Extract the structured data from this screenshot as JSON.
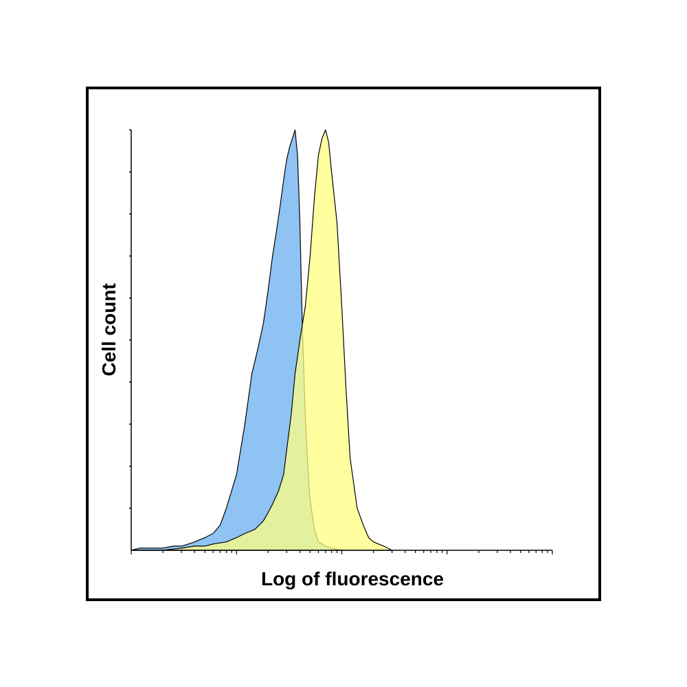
{
  "chart_data": {
    "type": "area",
    "xlabel": "Log of fluorescence",
    "ylabel": "Cell count",
    "x_scale": "log",
    "xlim": [
      1,
      10000
    ],
    "ylim": [
      0,
      100
    ],
    "grid": false,
    "legend": "none",
    "series": [
      {
        "color": "#8fc3f3",
        "x": [
          1,
          1.2,
          1.5,
          2,
          2.5,
          3,
          3.5,
          4,
          5,
          6,
          7,
          8,
          10,
          12,
          14,
          16,
          18,
          20,
          22,
          24,
          26,
          28,
          30,
          32,
          34,
          36,
          38,
          40,
          42,
          45,
          48,
          50,
          55,
          60,
          70,
          80,
          100
        ],
        "values": [
          0,
          0.5,
          0.5,
          0.5,
          1,
          1,
          1.5,
          2,
          3,
          4,
          6,
          10,
          18,
          30,
          42,
          48,
          54,
          62,
          70,
          76,
          82,
          88,
          93,
          96,
          98,
          100,
          94,
          78,
          55,
          32,
          18,
          12,
          5,
          2,
          1,
          0.5,
          0
        ]
      },
      {
        "color": "#ffff80",
        "x": [
          1,
          2,
          3,
          4,
          5,
          6,
          8,
          10,
          12,
          15,
          18,
          20,
          22,
          25,
          28,
          30,
          33,
          36,
          40,
          45,
          50,
          55,
          60,
          65,
          70,
          75,
          80,
          90,
          100,
          110,
          120,
          140,
          160,
          180,
          200,
          250,
          300
        ],
        "values": [
          0,
          0,
          0.5,
          1,
          1,
          1.5,
          2,
          3,
          4,
          5,
          7,
          9,
          11,
          14,
          18,
          24,
          32,
          42,
          50,
          58,
          70,
          84,
          94,
          98,
          100,
          97,
          90,
          78,
          58,
          38,
          22,
          10,
          6,
          3,
          2,
          1,
          0
        ]
      }
    ]
  }
}
